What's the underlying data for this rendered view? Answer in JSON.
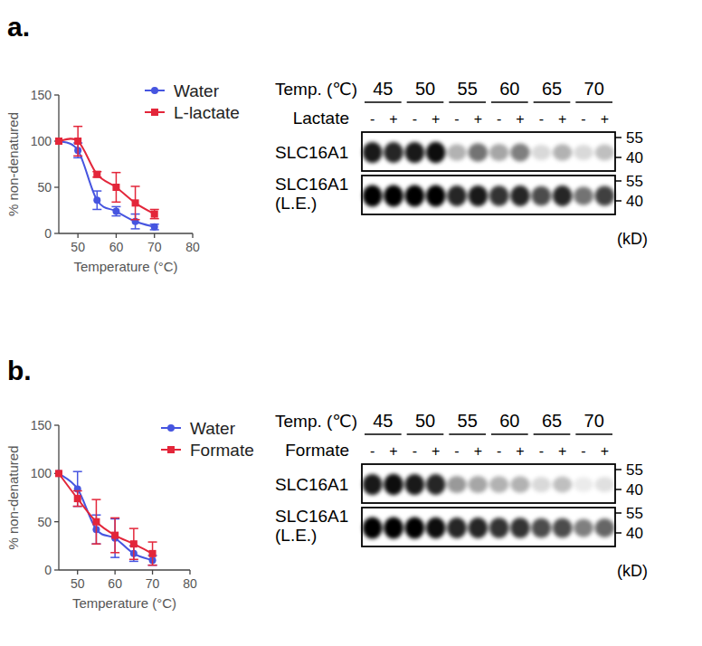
{
  "chart_data": [
    {
      "type": "line",
      "title": "a.",
      "x_label": "Temperature (°C)",
      "y_label": "% non-denatured",
      "x": [
        45,
        50,
        55,
        60,
        65,
        70
      ],
      "xlim": [
        45,
        80
      ],
      "xticks": [
        50,
        60,
        70,
        80
      ],
      "ylim": [
        0,
        150
      ],
      "yticks": [
        0,
        50,
        100,
        150
      ],
      "grid": false,
      "legend": "top-right",
      "series": [
        {
          "name": "Water",
          "color": "#4655e0",
          "marker": "circle",
          "values": [
            100,
            90,
            36,
            24,
            13,
            7
          ],
          "errors": [
            0,
            8,
            10,
            5,
            8,
            3
          ]
        },
        {
          "name": "L-lactate",
          "color": "#e3263a",
          "marker": "square",
          "values": [
            100,
            100,
            64,
            50,
            33,
            21
          ],
          "errors": [
            0,
            16,
            3,
            16,
            18,
            5
          ]
        }
      ]
    },
    {
      "type": "line",
      "title": "b.",
      "x_label": "Temperature (°C)",
      "y_label": "% non-denatured",
      "x": [
        45,
        50,
        55,
        60,
        65,
        70
      ],
      "xlim": [
        45,
        80
      ],
      "xticks": [
        50,
        60,
        70,
        80
      ],
      "ylim": [
        0,
        150
      ],
      "yticks": [
        0,
        50,
        100,
        150
      ],
      "grid": false,
      "legend": "top-right",
      "series": [
        {
          "name": "Water",
          "color": "#4655e0",
          "marker": "circle",
          "values": [
            100,
            84,
            42,
            33,
            17,
            10
          ],
          "errors": [
            0,
            18,
            15,
            20,
            8,
            5
          ]
        },
        {
          "name": "Formate",
          "color": "#e3263a",
          "marker": "square",
          "values": [
            100,
            74,
            50,
            36,
            27,
            17
          ],
          "errors": [
            0,
            8,
            23,
            18,
            16,
            12
          ]
        }
      ]
    }
  ],
  "blots": [
    {
      "header_label": "Temp. (℃)",
      "temps": [
        45,
        50,
        55,
        60,
        65,
        70
      ],
      "treatment": "Lactate",
      "signs": [
        "-",
        "+"
      ],
      "rows": [
        {
          "label": [
            "SLC16A1"
          ],
          "bands": [
            0.9,
            0.85,
            0.9,
            0.95,
            0.3,
            0.55,
            0.35,
            0.5,
            0.15,
            0.3,
            0.15,
            0.25
          ]
        },
        {
          "label": [
            "SLC16A1",
            "(L.E.)"
          ],
          "bands": [
            1,
            1,
            1,
            1,
            0.85,
            0.9,
            0.8,
            0.85,
            0.7,
            0.85,
            0.55,
            0.75
          ]
        }
      ],
      "mw": [
        55,
        40
      ],
      "unit": "(kD)"
    },
    {
      "header_label": "Temp. (℃)",
      "temps": [
        45,
        50,
        55,
        60,
        65,
        70
      ],
      "treatment": "Formate",
      "signs": [
        "-",
        "+"
      ],
      "rows": [
        {
          "label": [
            "SLC16A1"
          ],
          "bands": [
            0.9,
            0.95,
            0.9,
            0.85,
            0.4,
            0.35,
            0.3,
            0.3,
            0.15,
            0.25,
            0.08,
            0.12
          ]
        },
        {
          "label": [
            "SLC16A1",
            "(L.E.)"
          ],
          "bands": [
            1,
            1,
            1,
            0.95,
            0.85,
            0.85,
            0.8,
            0.8,
            0.7,
            0.7,
            0.5,
            0.6
          ]
        }
      ],
      "mw": [
        55,
        40
      ],
      "unit": "(kD)"
    }
  ]
}
